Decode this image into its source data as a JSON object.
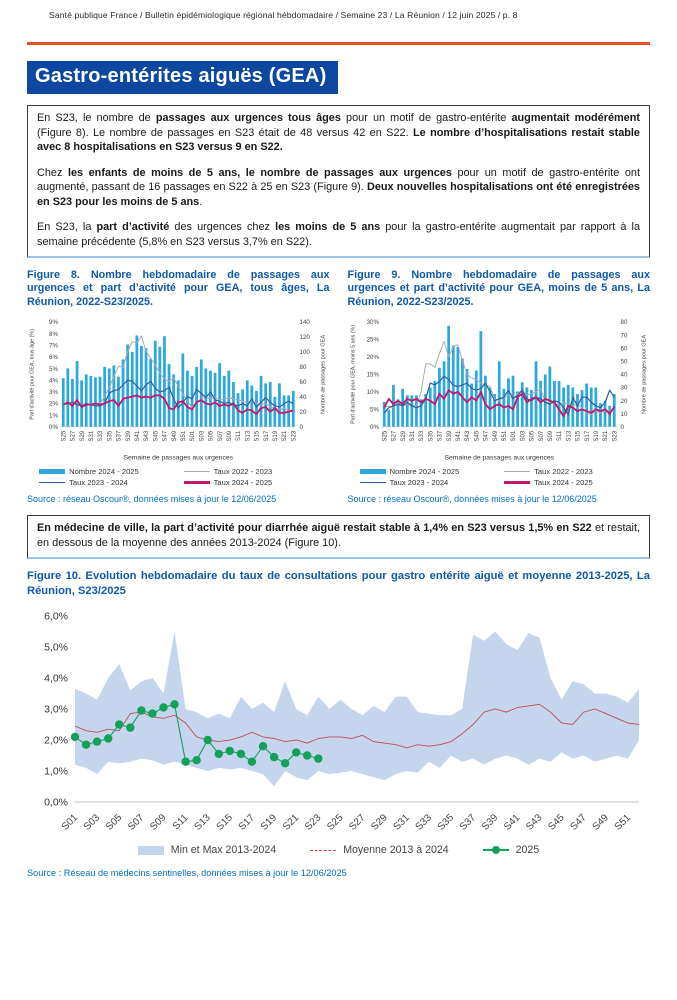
{
  "page": {
    "header": "Santé publique France / Bulletin épidémiologique régional hébdomadaire / Semaine 23 / La Réunion / 12  juin 2025 / p. 8",
    "title": "Gastro-entérites aiguës (GEA)",
    "accent_orange": "#E8502B",
    "banner_blue": "#0E47A0",
    "caption_blue": "#1058A8",
    "source_blue": "#0070C0"
  },
  "boxes": {
    "box1": [
      [
        {
          "t": "En S23, le nombre de ",
          "b": false
        },
        {
          "t": "passages aux urgences tous âges",
          "b": true
        },
        {
          "t": " pour un motif de gastro-entérite ",
          "b": false
        },
        {
          "t": "augmentait modérément",
          "b": true
        },
        {
          "t": " (Figure 8). Le nombre de passages en S23 était de 48 versus 42 en S22. ",
          "b": false
        },
        {
          "t": "Le nombre d’hospitalisations restait stable avec 8 hospitalisations en S23 versus 9 en S22.",
          "b": true
        }
      ],
      [
        {
          "t": "Chez ",
          "b": false
        },
        {
          "t": "les enfants de moins de 5 ans, le nombre de passages aux urgences",
          "b": true
        },
        {
          "t": " pour un motif de gastro-entérite ont augmenté, passant de 16 passages en S22 à 25 en S23 (Figure 9). ",
          "b": false
        },
        {
          "t": "Deux nouvelles hospitalisations ont été enregistrées en S23 pour les moins de 5 ans",
          "b": true
        },
        {
          "t": ".",
          "b": false
        }
      ],
      [
        {
          "t": "En S23, la ",
          "b": false
        },
        {
          "t": "part d’activité",
          "b": true
        },
        {
          "t": " des urgences chez ",
          "b": false
        },
        {
          "t": "les moins de 5 ans",
          "b": true
        },
        {
          "t": " pour la gastro-entérite augmentait par rapport à la semaine précédente (5,8% en S23 versus 3,7% en S22).",
          "b": false
        }
      ]
    ],
    "box2": [
      [
        {
          "t": "En médecine de ville, la part d’activité pour diarrhée aiguë restait stable à 1,4% en S23 versus 1,5% en S22",
          "b": true
        },
        {
          "t": " et restait, en dessous de la moyenne des années 2013-2024 (Figure 10).",
          "b": false
        }
      ]
    ]
  },
  "figures": {
    "fig8": {
      "caption": "Figure 8. Nombre hebdomadaire de passages aux urgences et part d’activité pour GEA, tous âges, La Réunion, 2022-S23/2025.",
      "source": "Source : réseau Oscour®, données mises à jour le 12/06/2025"
    },
    "fig9": {
      "caption": "Figure 9. Nombre hebdomadaire de passages aux urgences et part d’activité pour GEA, moins de 5 ans, La Réunion, 2022-S23/2025.",
      "source": "Source : réseau Oscour®, données mises à jour le 12/06/2025"
    },
    "fig10": {
      "caption": "Figure 10. Evolution hebdomadaire du taux de consultations pour gastro entérite aiguë et moyenne 2013-2025, La Réunion, S23/2025",
      "source": "Source : Réseau de médecins sentinelles, données mises à jour le 12/06/2025"
    }
  },
  "chart_data": [
    {
      "id": "fig8",
      "type": "bar+line",
      "categories": [
        "S25",
        "S26",
        "S27",
        "S28",
        "S29",
        "S30",
        "S31",
        "S32",
        "S33",
        "S34",
        "S35",
        "S36",
        "S37",
        "S38",
        "S39",
        "S40",
        "S41",
        "S42",
        "S43",
        "S44",
        "S45",
        "S46",
        "S47",
        "S48",
        "S49",
        "S50",
        "S51",
        "S52",
        "S01",
        "S02",
        "S03",
        "S04",
        "S05",
        "S06",
        "S07",
        "S08",
        "S09",
        "S10",
        "S11",
        "S12",
        "S13",
        "S14",
        "S15",
        "S16",
        "S17",
        "S18",
        "S19",
        "S20",
        "S21",
        "S22",
        "S23"
      ],
      "x_tick_every": 2,
      "x_label": "Semaine de passages aux urgences",
      "left_axis": {
        "min": 0,
        "max": 9,
        "ticks": [
          "0%",
          "1%",
          "2%",
          "3%",
          "4%",
          "5%",
          "6%",
          "7%",
          "8%",
          "9%"
        ],
        "label": "Part d'activité pour GEA, tous âge (%)"
      },
      "right_axis": {
        "min": 0,
        "max": 140,
        "ticks": [
          "0",
          "20",
          "40",
          "60",
          "80",
          "100",
          "120",
          "140"
        ],
        "label": "Nombre de passages pour GEA"
      },
      "bar": {
        "name": "Nombre 2024 - 2025",
        "color": "#2BA9DC",
        "axis": "right",
        "values": [
          65,
          78,
          64,
          88,
          62,
          70,
          68,
          66,
          67,
          80,
          78,
          82,
          67,
          90,
          110,
          100,
          122,
          108,
          105,
          91,
          115,
          107,
          121,
          84,
          70,
          62,
          98,
          75,
          68,
          80,
          90,
          78,
          75,
          72,
          85,
          68,
          75,
          60,
          45,
          50,
          62,
          55,
          48,
          68,
          58,
          60,
          40,
          58,
          42,
          42,
          48
        ]
      },
      "lines": [
        {
          "name": "Taux 2022 - 2023",
          "color": "#ABABAB",
          "width": 1,
          "values": [
            1.9,
            2.0,
            1.9,
            2.1,
            1.8,
            2.0,
            1.9,
            2.0,
            2.0,
            2.6,
            3.4,
            4.3,
            5.2,
            5.1,
            6.4,
            7.3,
            7.2,
            7.8,
            6.5,
            5.9,
            5.3,
            4.6,
            4.1,
            3.9,
            4.2,
            3.5,
            2.8,
            2.2,
            1.7,
            2.1,
            2.4,
            2.5,
            2.4,
            2.5,
            2.3,
            2.4,
            2.5,
            2.4,
            2.3,
            2.2,
            2.1,
            2.2,
            2.0,
            1.9,
            2.0,
            1.7,
            1.6,
            1.5,
            1.6,
            1.4,
            1.5
          ]
        },
        {
          "name": "Taux 2023 - 2024",
          "color": "#2E5B9F",
          "width": 1.2,
          "values": [
            1.9,
            2.0,
            2.1,
            1.9,
            1.8,
            2.0,
            1.9,
            1.8,
            1.8,
            2.0,
            2.9,
            3.1,
            3.2,
            3.6,
            4.0,
            3.9,
            3.5,
            3.1,
            3.6,
            3.9,
            3.3,
            3.0,
            3.1,
            3.4,
            2.4,
            1.6,
            2.1,
            2.6,
            2.4,
            3.2,
            2.9,
            2.5,
            3.0,
            2.3,
            2.2,
            2.0,
            2.1,
            1.9,
            1.8,
            2.0,
            1.8,
            2.4,
            1.7,
            2.1,
            2.5,
            2.1,
            1.8,
            1.7,
            2.0,
            2.2,
            2.0
          ]
        },
        {
          "name": "Taux 2024 - 2025",
          "color": "#C2176B",
          "width": 1.8,
          "values": [
            1.9,
            2.1,
            1.8,
            2.3,
            1.7,
            1.9,
            1.9,
            2.0,
            1.9,
            2.0,
            2.2,
            2.3,
            1.8,
            2.4,
            2.5,
            2.6,
            2.7,
            2.5,
            2.6,
            2.5,
            2.7,
            2.7,
            2.4,
            1.6,
            1.5,
            2.1,
            2.2,
            1.7,
            1.5,
            2.1,
            2.3,
            2.0,
            1.9,
            2.1,
            1.8,
            1.9,
            1.8,
            2.0,
            1.4,
            1.2,
            1.5,
            1.4,
            1.1,
            1.6,
            1.7,
            1.3,
            1.6,
            1.2,
            1.2,
            1.3,
            1.4
          ]
        }
      ]
    },
    {
      "id": "fig9",
      "type": "bar+line",
      "categories": [
        "S25",
        "S26",
        "S27",
        "S28",
        "S29",
        "S30",
        "S31",
        "S32",
        "S33",
        "S34",
        "S35",
        "S36",
        "S37",
        "S38",
        "S39",
        "S40",
        "S41",
        "S42",
        "S43",
        "S44",
        "S45",
        "S46",
        "S47",
        "S48",
        "S49",
        "S50",
        "S51",
        "S52",
        "S01",
        "S02",
        "S03",
        "S04",
        "S05",
        "S06",
        "S07",
        "S08",
        "S09",
        "S10",
        "S11",
        "S12",
        "S13",
        "S14",
        "S15",
        "S16",
        "S17",
        "S18",
        "S19",
        "S20",
        "S21",
        "S22",
        "S23"
      ],
      "x_tick_every": 2,
      "x_label": "Semaine de passages aux urgences",
      "left_axis": {
        "min": 0,
        "max": 30,
        "ticks": [
          "0%",
          "5%",
          "10%",
          "15%",
          "20%",
          "25%",
          "30%"
        ],
        "label": "Part d'activité pour GEA, moins 5 ans (%)"
      },
      "right_axis": {
        "min": 0,
        "max": 80,
        "ticks": [
          "0",
          "10",
          "20",
          "30",
          "40",
          "50",
          "60",
          "70",
          "80"
        ],
        "label": "Nombre de passages pour GEA"
      },
      "bar": {
        "name": "Nombre 2024 - 2025",
        "color": "#2BA9DC",
        "axis": "right",
        "values": [
          19,
          13,
          32,
          21,
          29,
          24,
          24,
          24,
          21,
          25,
          30,
          35,
          45,
          50,
          77,
          62,
          61,
          52,
          44,
          33,
          43,
          73,
          39,
          30,
          25,
          50,
          29,
          37,
          39,
          27,
          34,
          30,
          28,
          50,
          35,
          40,
          46,
          35,
          35,
          30,
          32,
          30,
          25,
          28,
          33,
          30,
          30,
          18,
          20,
          16,
          25
        ]
      },
      "lines": [
        {
          "name": "Taux 2022 - 2023",
          "color": "#ABABAB",
          "width": 1,
          "values": [
            5.5,
            6,
            5.5,
            7,
            6,
            6.5,
            6,
            6,
            10,
            18,
            18,
            17,
            21,
            24.5,
            20,
            23,
            23.5,
            19,
            15,
            14,
            13.5,
            12.5,
            12,
            11.5,
            8,
            7.5,
            8.5,
            9,
            8,
            9.5,
            10.5,
            9,
            9.5,
            10,
            11,
            7,
            7,
            6.5,
            6.5,
            7,
            6.5,
            6,
            6.5,
            5.5,
            4,
            3.5,
            4.5,
            4,
            4.5,
            5,
            4.5
          ]
        },
        {
          "name": "Taux 2023 - 2024",
          "color": "#2E5B9F",
          "width": 1.2,
          "values": [
            4,
            5.5,
            6,
            6.5,
            6,
            7,
            6,
            5.5,
            6,
            8,
            12.5,
            12,
            13,
            14.5,
            13.5,
            12,
            11.5,
            12,
            12.5,
            11,
            10.5,
            11,
            12.5,
            10,
            7.5,
            8,
            8.5,
            10.5,
            8,
            9,
            10.5,
            8,
            7.5,
            8.5,
            8,
            7,
            6.5,
            7.5,
            7,
            5.5,
            3.5,
            8.5,
            6,
            8.5,
            8.5,
            7,
            6,
            5.5,
            7,
            10.5,
            8.5
          ]
        },
        {
          "name": "Taux 2024 - 2025",
          "color": "#C2176B",
          "width": 1.8,
          "values": [
            5.5,
            8,
            6.5,
            7.5,
            6.5,
            8,
            7.5,
            8,
            7,
            8,
            7.5,
            6.5,
            9.5,
            8,
            10.5,
            9.5,
            10,
            8.5,
            7,
            8.5,
            7.5,
            10,
            6.5,
            5,
            6,
            6.5,
            5.5,
            6,
            5,
            8.5,
            9.5,
            7,
            8,
            8.5,
            7,
            8,
            7.5,
            7,
            5,
            3,
            6,
            5.5,
            4.5,
            5,
            4.5,
            4,
            5,
            4.5,
            5,
            3.7,
            5.8
          ]
        }
      ]
    },
    {
      "id": "fig10",
      "type": "band+line",
      "categories": [
        "S01",
        "S02",
        "S03",
        "S04",
        "S05",
        "S06",
        "S07",
        "S08",
        "S09",
        "S10",
        "S11",
        "S12",
        "S13",
        "S14",
        "S15",
        "S16",
        "S17",
        "S18",
        "S19",
        "S20",
        "S21",
        "S22",
        "S23",
        "S24",
        "S25",
        "S26",
        "S27",
        "S28",
        "S29",
        "S30",
        "S31",
        "S32",
        "S33",
        "S34",
        "S35",
        "S36",
        "S37",
        "S38",
        "S39",
        "S40",
        "S41",
        "S42",
        "S43",
        "S44",
        "S45",
        "S46",
        "S47",
        "S48",
        "S49",
        "S50",
        "S51",
        "S52"
      ],
      "x_tick_every": 2,
      "y_axis": {
        "min": 0,
        "max": 6,
        "ticks": [
          "0,0%",
          "1,0%",
          "2,0%",
          "3,0%",
          "4,0%",
          "5,0%",
          "6,0%"
        ]
      },
      "band": {
        "name": "Min et Max 2013-2024",
        "color": "#C5D5ED",
        "min": [
          1.2,
          1.1,
          0.9,
          1.3,
          1.25,
          1.3,
          1.4,
          1.35,
          1.2,
          1.3,
          1.2,
          1.1,
          1.0,
          1.1,
          1.05,
          1.1,
          1.0,
          0.9,
          0.5,
          1.0,
          0.8,
          0.7,
          1.0,
          0.9,
          0.95,
          1.0,
          0.9,
          0.8,
          0.7,
          0.9,
          1.0,
          0.95,
          1.3,
          1.1,
          1.5,
          1.3,
          1.4,
          1.2,
          1.4,
          1.5,
          1.4,
          1.2,
          1.4,
          1.3,
          1.6,
          1.4,
          1.5,
          1.3,
          1.4,
          1.5,
          1.4,
          2.0
        ],
        "max": [
          3.65,
          3.5,
          3.3,
          4.0,
          4.45,
          3.6,
          3.9,
          4.0,
          3.5,
          5.5,
          3.0,
          2.9,
          2.7,
          2.85,
          2.7,
          3.4,
          3.0,
          3.2,
          2.9,
          3.9,
          3.0,
          2.8,
          3.4,
          3.0,
          3.3,
          3.0,
          2.8,
          3.1,
          2.9,
          3.4,
          3.4,
          2.9,
          2.85,
          2.8,
          2.8,
          3.0,
          5.4,
          5.2,
          5.5,
          5.1,
          4.9,
          5.45,
          5.3,
          4.0,
          3.3,
          3.9,
          3.8,
          3.5,
          3.5,
          3.4,
          3.2,
          3.65
        ]
      },
      "mean_line": {
        "name": "Moyenne 2013 à 2024",
        "color": "#C0504D",
        "values": [
          2.45,
          2.3,
          2.25,
          2.35,
          2.3,
          2.85,
          2.9,
          2.75,
          2.7,
          2.8,
          2.55,
          2.1,
          2.0,
          1.95,
          2.0,
          2.1,
          2.25,
          2.1,
          2.05,
          1.95,
          2.0,
          1.9,
          2.05,
          2.1,
          2.1,
          2.05,
          2.15,
          1.95,
          1.9,
          1.85,
          1.75,
          1.85,
          1.8,
          1.85,
          1.95,
          2.2,
          2.5,
          2.9,
          3.0,
          2.9,
          3.05,
          3.1,
          3.15,
          2.9,
          2.55,
          2.5,
          2.9,
          3.0,
          2.85,
          2.7,
          2.55,
          2.5
        ]
      },
      "current_line": {
        "name": "2025",
        "color": "#14A05A",
        "values": [
          2.1,
          1.85,
          1.95,
          2.05,
          2.5,
          2.4,
          2.95,
          2.85,
          3.05,
          3.15,
          1.3,
          1.35,
          2.0,
          1.55,
          1.65,
          1.55,
          1.3,
          1.8,
          1.45,
          1.25,
          1.6,
          1.5,
          1.4
        ]
      }
    }
  ]
}
